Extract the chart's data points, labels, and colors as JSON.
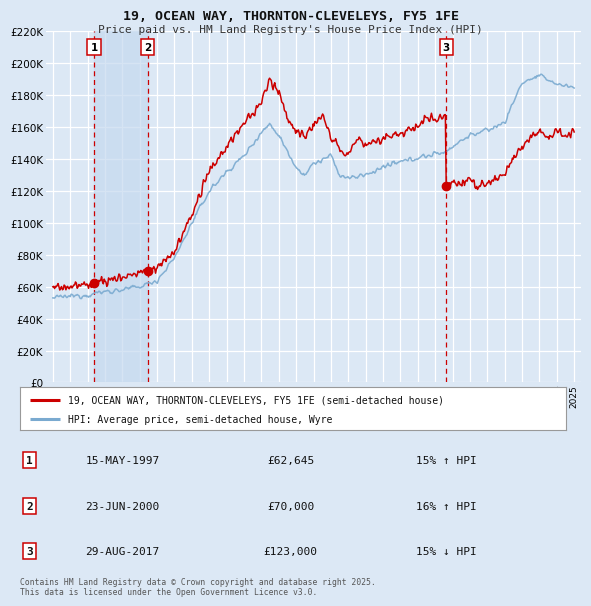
{
  "title": "19, OCEAN WAY, THORNTON-CLEVELEYS, FY5 1FE",
  "subtitle": "Price paid vs. HM Land Registry's House Price Index (HPI)",
  "legend_line1": "19, OCEAN WAY, THORNTON-CLEVELEYS, FY5 1FE (semi-detached house)",
  "legend_line2": "HPI: Average price, semi-detached house, Wyre",
  "transactions": [
    {
      "num": 1,
      "date": "15-MAY-1997",
      "price": 62645,
      "pct": "15%",
      "dir": "↑",
      "year": 1997.37
    },
    {
      "num": 2,
      "date": "23-JUN-2000",
      "price": 70000,
      "pct": "16%",
      "dir": "↑",
      "year": 2000.47
    },
    {
      "num": 3,
      "date": "29-AUG-2017",
      "price": 123000,
      "pct": "15%",
      "dir": "↓",
      "year": 2017.65
    }
  ],
  "footnote": "Contains HM Land Registry data © Crown copyright and database right 2025.\nThis data is licensed under the Open Government Licence v3.0.",
  "price_color": "#cc0000",
  "hpi_color": "#7aaad0",
  "background_color": "#dce8f5",
  "plot_bg_color": "#dce8f5",
  "grid_color": "#ffffff",
  "vline_color": "#cc0000",
  "shade_color": "#c5d9ef",
  "ylim": [
    0,
    220000
  ],
  "yticks": [
    0,
    20000,
    40000,
    60000,
    80000,
    100000,
    120000,
    140000,
    160000,
    180000,
    200000,
    220000
  ],
  "xlim": [
    1994.6,
    2025.4
  ]
}
